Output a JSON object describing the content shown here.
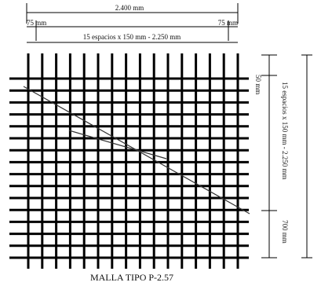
{
  "dimensions": {
    "total_width": "2.400 mm",
    "left_margin": "75 mm",
    "right_margin": "75 mm",
    "horizontal_spacing": "15 espacios x 150 mm - 2.250 mm",
    "top_offset": "50 mm",
    "vertical_spacing": "15 espacios x 150 mm - 2.250 mm",
    "bottom_segment": "700 mm"
  },
  "title": "MALLA TIPO P-2.57"
}
